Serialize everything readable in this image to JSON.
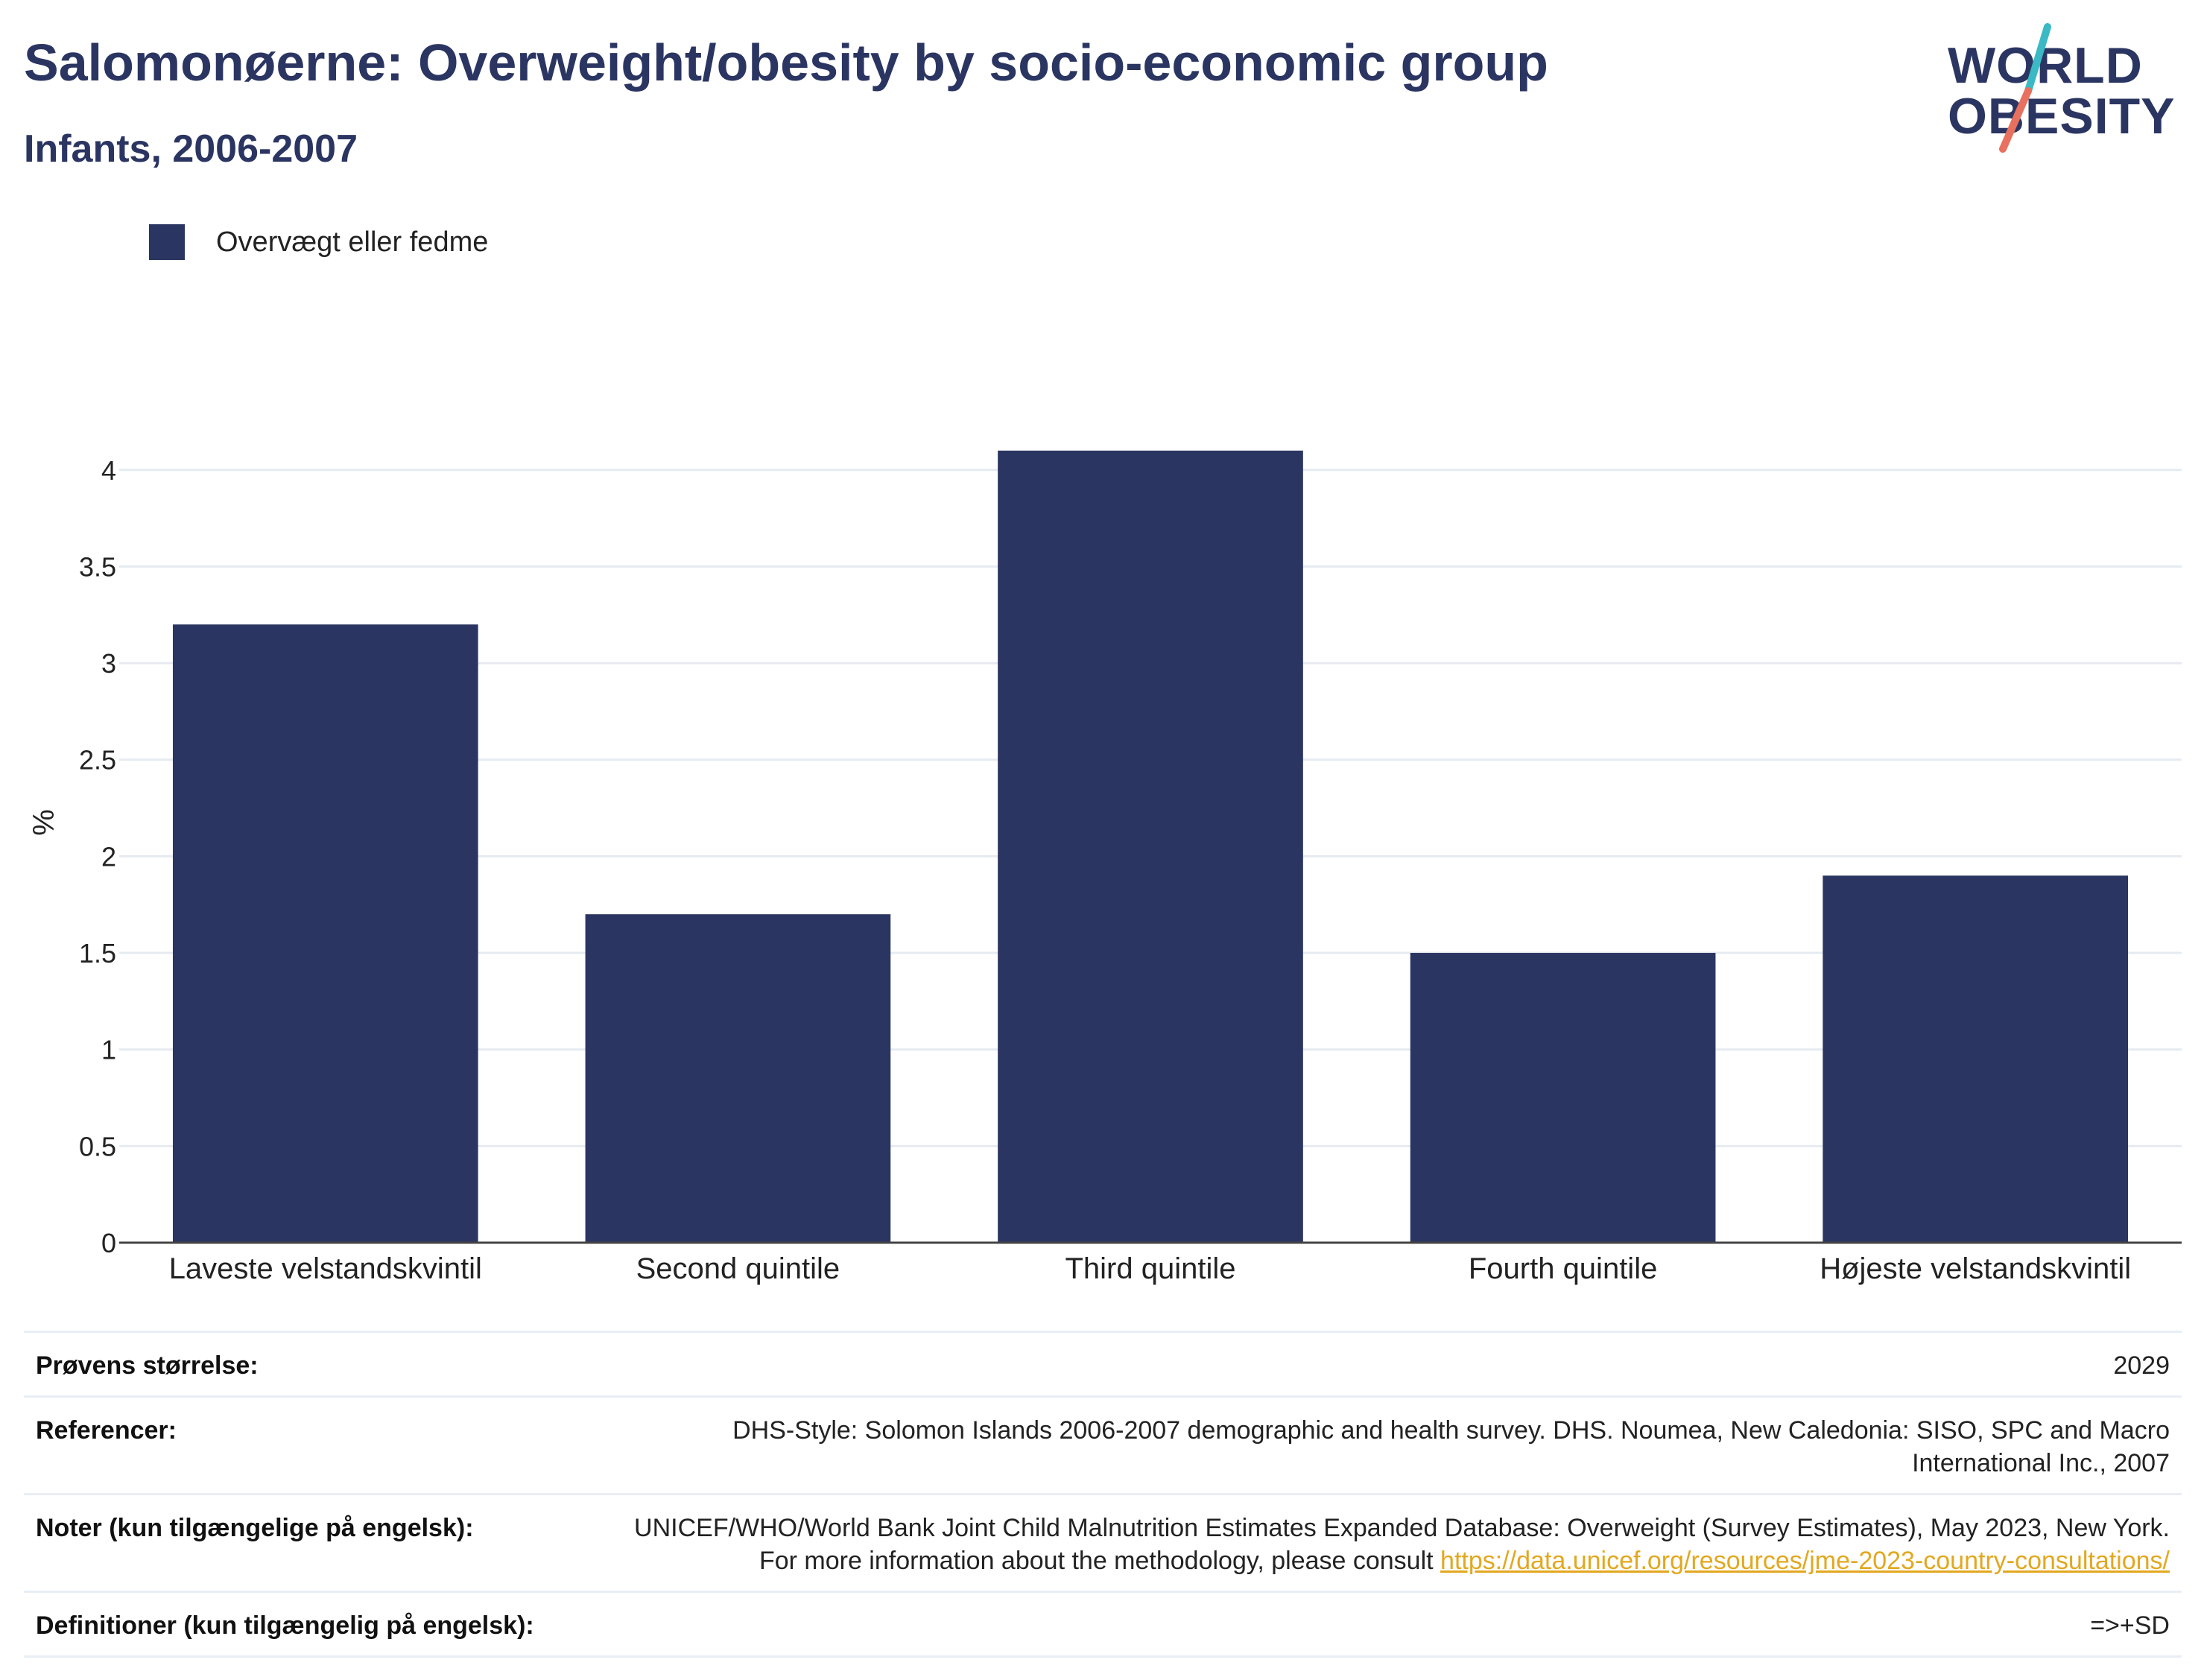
{
  "header": {
    "title": "Salomonøerne: Overweight/obesity by socio-economic group",
    "subtitle": "Infants, 2006-2007"
  },
  "logo": {
    "line1": "WORLD",
    "line2": "OBESITY",
    "stroke_teal": "#3bb9c4",
    "stroke_coral": "#e8705f"
  },
  "colors": {
    "bar": "#2b3562",
    "grid": "#e6ebf1",
    "axis": "#444444"
  },
  "chart_data": {
    "type": "bar",
    "categories": [
      "Laveste velstandskvintil",
      "Second quintile",
      "Third quintile",
      "Fourth quintile",
      "Højeste velstandskvintil"
    ],
    "series": [
      {
        "name": "Overvægt eller fedme",
        "values": [
          3.2,
          1.7,
          4.1,
          1.5,
          1.9
        ]
      }
    ],
    "ylabel": "%",
    "ylim": [
      0,
      4.35
    ],
    "yticks": [
      0,
      0.5,
      1,
      1.5,
      2,
      2.5,
      3,
      3.5,
      4
    ],
    "grid": true,
    "legend": "top-left"
  },
  "meta": {
    "sample_label": "Prøvens størrelse:",
    "sample_value": "2029",
    "references_label": "Referencer:",
    "references_value": "DHS-Style: Solomon Islands 2006-2007 demographic and health survey. DHS. Noumea, New Caledonia: SISO, SPC and Macro International Inc., 2007",
    "notes_label": "Noter (kun tilgængelige på engelsk):",
    "notes_text": "UNICEF/WHO/World Bank Joint Child Malnutrition Estimates Expanded Database: Overweight (Survey Estimates), May 2023, New York. For more information about the methodology, please consult",
    "notes_link": "https://data.unicef.org/resources/jme-2023-country-consultations/",
    "definitions_label": "Definitioner (kun tilgængelig på engelsk):",
    "definitions_value": "=>+SD"
  }
}
